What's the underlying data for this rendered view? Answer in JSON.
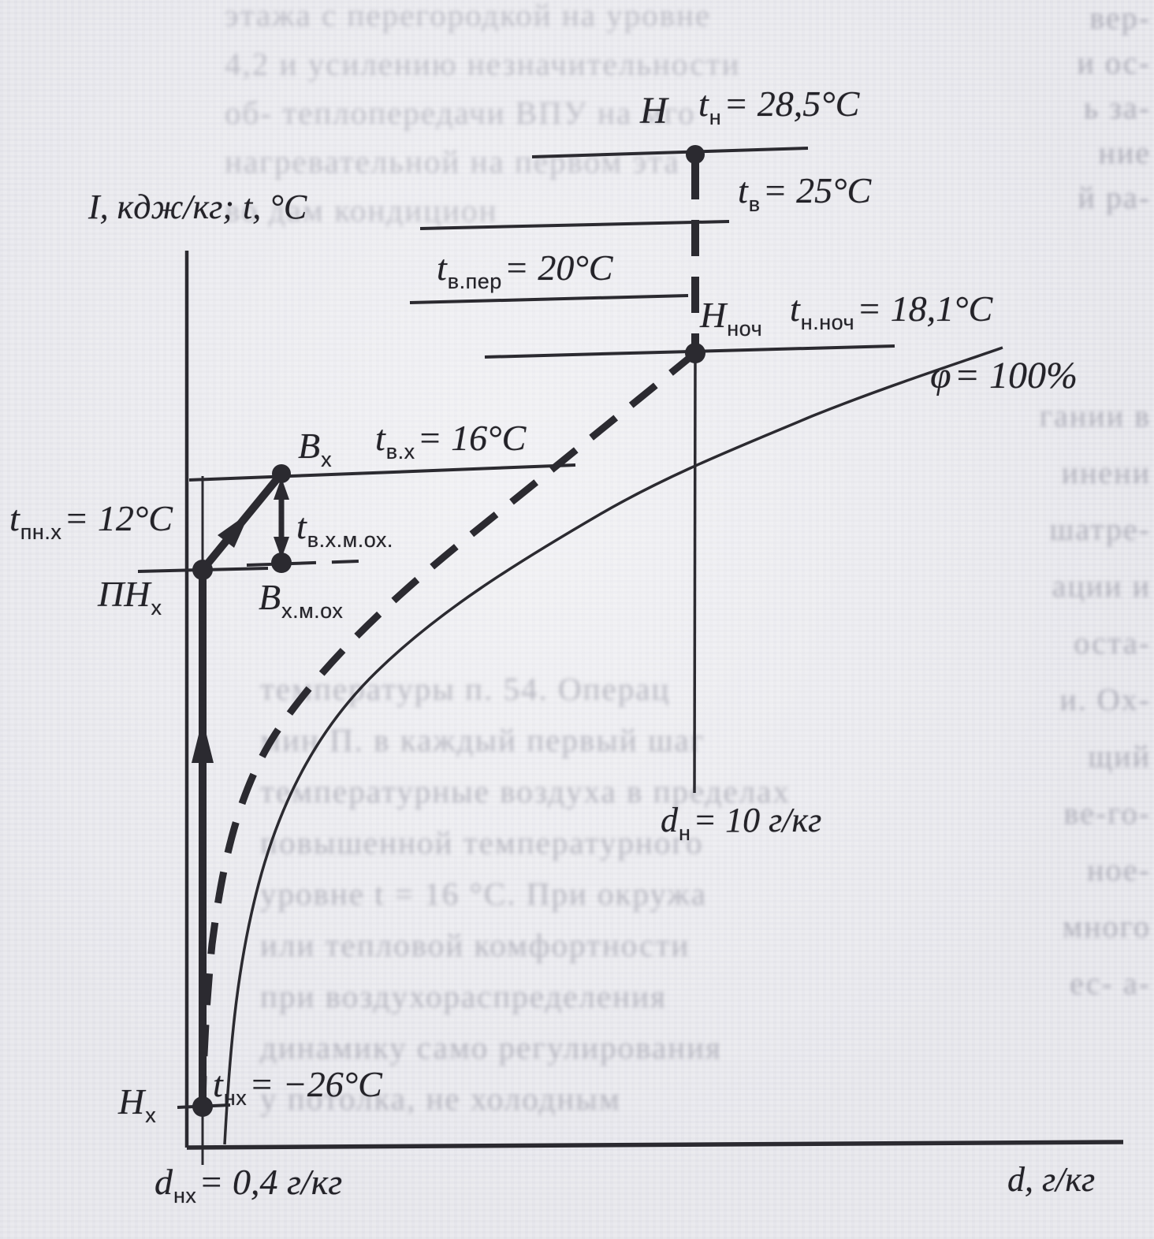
{
  "diagram": {
    "title_semantic": "I-d (psychrometric) process diagram from scanned Russian HVAC textbook",
    "y_axis_label": "I, кдж/кг; t, °C",
    "x_axis_label": "d, г/кг",
    "saturation_curve_label": "φ = 100%",
    "points": [
      {
        "id": "H",
        "description": "outdoor summer state",
        "temperature": "t_н = 28,5°C",
        "moisture": "d_н = 10 г/кг"
      },
      {
        "id": "H_ноч",
        "description": "outdoor night state",
        "temperature": "t_н.ноч = 18,1°C"
      },
      {
        "id": "B_х",
        "description": "indoor cold-period state",
        "temperature": "t_в.х = 16°C"
      },
      {
        "id": "B_х.м.ох",
        "description": "state after local cooling",
        "temperature": "t_в.х.м.ох."
      },
      {
        "id": "ПН_х",
        "description": "supply-air heated state",
        "temperature": "t_пн.х = 12°C"
      },
      {
        "id": "H_х",
        "description": "outdoor cold state",
        "temperature": "t_нх = −26°C",
        "moisture": "d_нх = 0,4 г/кг"
      }
    ],
    "isotherm_levels": [
      "t_н = 28,5°C",
      "t_в = 25°C",
      "t_в.пер = 20°C",
      "t_н.ноч = 18,1°C",
      "t_в.х = 16°C",
      "t_пн.х = 12°C",
      "t_нх = −26°C"
    ],
    "moisture_lines": [
      "d_н = 10 г/кг",
      "d_нх = 0,4 г/кг"
    ],
    "process_lines": [
      "solid bold: H_х up to ПН_х, then ПН_х to B_х (heating of outdoor air)",
      "thick dashed: H down to H_ноч and curved from H_ноч to H_х",
      "double arrow between B_х and B_х.м.ох"
    ]
  },
  "labels": {
    "axisY": {
      "b": "I, кдж/кг; t, °C",
      "s": "",
      "r": ""
    },
    "axisX": {
      "b": "d, г/кг",
      "s": "",
      "r": ""
    },
    "H": {
      "b": "H",
      "s": "",
      "r": ""
    },
    "tn": {
      "b": "t",
      "s": "н",
      "r": "= 28,5°C"
    },
    "tv": {
      "b": "t",
      "s": "в",
      "r": "= 25°C"
    },
    "tvper": {
      "b": "t",
      "s": "в.пер",
      "r": "= 20°C"
    },
    "Hnoch": {
      "b": "H",
      "s": "ноч",
      "r": ""
    },
    "tnnoch": {
      "b": "t",
      "s": "н.ноч",
      "r": "= 18,1°C"
    },
    "phi": {
      "b": "φ",
      "s": "",
      "r": "= 100%"
    },
    "Bx": {
      "b": "B",
      "s": "х",
      "r": ""
    },
    "tvx": {
      "b": "t",
      "s": "в.х",
      "r": "= 16°C"
    },
    "tpnx": {
      "b": "t",
      "s": "пн.х",
      "r": "= 12°C"
    },
    "PNx": {
      "b": "ПН",
      "s": "х",
      "r": ""
    },
    "tvxmox": {
      "b": "t",
      "s": "в.х.м.ох.",
      "r": ""
    },
    "Bxmox": {
      "b": "B",
      "s": "х.м.ох",
      "r": ""
    },
    "dn": {
      "b": "d",
      "s": "н",
      "r": "= 10 г/кг"
    },
    "tnx": {
      "b": "t",
      "s": "нх",
      "r": "= −26°C"
    },
    "Hx": {
      "b": "H",
      "s": "х",
      "r": ""
    },
    "dnx": {
      "b": "d",
      "s": "нх",
      "r": "= 0,4 г/кг"
    }
  },
  "bleed": {
    "top": [
      "этажа с перегородкой на уровне",
      "4,2 и усилению незначительности",
      "об- теплопередачи ВПУ на мго",
      "нагревательной на первом эта",
      "во дам кондицион"
    ],
    "mid": [
      "температуры п. 54. Операц",
      "мин П. в каждый первый шаг",
      "температурные воздуха в пределах",
      "повышенной температурного",
      "уровне t = 16 °C. При окружа",
      "или тепловой комфортности",
      "при воздухораспределения",
      "динамику само регулирования",
      "у потолка, не холодным"
    ],
    "right_top": [
      "вер-",
      "и ос-",
      "ь за-",
      "ние",
      "й ра-"
    ],
    "right_mid": [
      "гании в",
      "инени",
      "шатре-",
      "ации и",
      "оста-",
      "и. Ох-",
      "щий",
      "ве-го-",
      "ное-",
      "много",
      "ес- а-"
    ]
  },
  "colors": {
    "paper": "#e9e9ee",
    "ink": "#2b2a30",
    "bleed_text": "#5b5b6e"
  }
}
